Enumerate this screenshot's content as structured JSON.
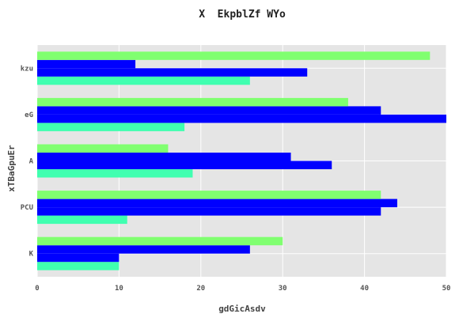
{
  "chart_data": {
    "type": "bar",
    "orientation": "horizontal",
    "title": "X  EkpblZf WYo",
    "xlabel": "gdGicAsdv",
    "ylabel": "xTBaGpuEr",
    "categories": [
      "K",
      "PCU",
      "A",
      "eG",
      "kzu"
    ],
    "series": [
      {
        "color": "#40ffb0",
        "values": [
          10,
          11,
          19,
          18,
          26
        ]
      },
      {
        "color": "#0000ff",
        "values": [
          10,
          42,
          36,
          50,
          33
        ]
      },
      {
        "color": "#0000ff",
        "values": [
          26,
          44,
          31,
          42,
          12
        ]
      },
      {
        "color": "#80ff70",
        "values": [
          30,
          42,
          16,
          38,
          48
        ]
      }
    ],
    "xlim": [
      0,
      50
    ],
    "xticks": [
      "0",
      "10",
      "20",
      "30",
      "40",
      "50"
    ],
    "grid": true,
    "background": "#e5e5e5"
  }
}
